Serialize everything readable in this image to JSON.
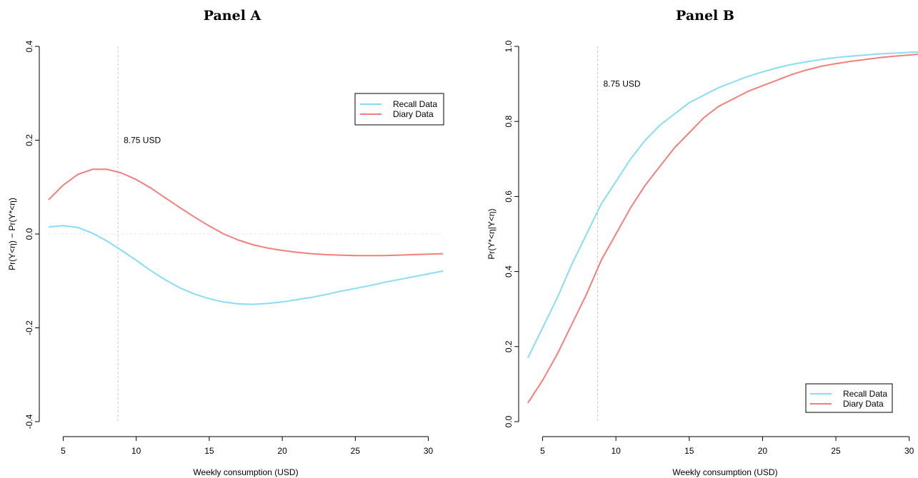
{
  "colors": {
    "recall": "#87DDF5",
    "diary": "#F47F7A",
    "refline": "#C8C8C8"
  },
  "chart_data": [
    {
      "type": "line",
      "title": "Panel A",
      "xlabel": "Weekly consumption (USD)",
      "ylabel": "Pr(Y<η) − Pr(Y*<η)",
      "xlim": [
        4,
        31
      ],
      "ylim": [
        -0.4,
        0.4
      ],
      "xticks": [
        5,
        10,
        15,
        20,
        25,
        30
      ],
      "yticks": [
        -0.4,
        -0.2,
        0.0,
        0.2,
        0.4
      ],
      "ytick_labels": [
        "-0.4",
        "-0.2",
        "0.0",
        "0.2",
        "0.4"
      ],
      "annotation": {
        "text": "8.75 USD",
        "x": 8.75,
        "y": 0.2
      },
      "vline_x": 8.75,
      "hline_y": 0.0,
      "legend_position": "top-right",
      "series": [
        {
          "name": "Recall Data",
          "color_key": "recall",
          "x": [
            4,
            5,
            6,
            7,
            8,
            9,
            10,
            11,
            12,
            13,
            14,
            15,
            16,
            17,
            18,
            19,
            20,
            21,
            22,
            23,
            24,
            25,
            26,
            27,
            28,
            29,
            30,
            31
          ],
          "y": [
            0.015,
            0.018,
            0.014,
            0.002,
            -0.015,
            -0.035,
            -0.056,
            -0.078,
            -0.098,
            -0.115,
            -0.128,
            -0.138,
            -0.145,
            -0.149,
            -0.15,
            -0.148,
            -0.145,
            -0.14,
            -0.135,
            -0.129,
            -0.122,
            -0.116,
            -0.11,
            -0.103,
            -0.097,
            -0.091,
            -0.085,
            -0.079
          ]
        },
        {
          "name": "Diary Data",
          "color_key": "diary",
          "x": [
            4,
            5,
            6,
            7,
            8,
            9,
            10,
            11,
            12,
            13,
            14,
            15,
            16,
            17,
            18,
            19,
            20,
            21,
            22,
            23,
            24,
            25,
            26,
            27,
            28,
            29,
            30,
            31
          ],
          "y": [
            0.073,
            0.104,
            0.127,
            0.138,
            0.138,
            0.13,
            0.116,
            0.098,
            0.077,
            0.056,
            0.036,
            0.017,
            0.0,
            -0.013,
            -0.023,
            -0.03,
            -0.035,
            -0.039,
            -0.042,
            -0.044,
            -0.045,
            -0.046,
            -0.046,
            -0.046,
            -0.045,
            -0.044,
            -0.043,
            -0.042
          ]
        }
      ]
    },
    {
      "type": "line",
      "title": "Panel B",
      "xlabel": "Weekly consumption (USD)",
      "ylabel": "Pr(Y*<η|Y<η)",
      "xlim": [
        4,
        30.6
      ],
      "ylim": [
        0.0,
        1.0
      ],
      "xticks": [
        5,
        10,
        15,
        20,
        25,
        30
      ],
      "yticks": [
        0.0,
        0.2,
        0.4,
        0.6,
        0.8,
        1.0
      ],
      "ytick_labels": [
        "0.0",
        "0.2",
        "0.4",
        "0.6",
        "0.8",
        "1.0"
      ],
      "annotation": {
        "text": "8.75 USD",
        "x": 8.75,
        "y": 0.9
      },
      "vline_x": 8.75,
      "legend_position": "bottom-right",
      "series": [
        {
          "name": "Recall Data",
          "color_key": "recall",
          "x": [
            4,
            5,
            6,
            7,
            8,
            9,
            10,
            11,
            12,
            13,
            14,
            15,
            16,
            17,
            18,
            19,
            20,
            21,
            22,
            23,
            24,
            25,
            26,
            27,
            28,
            29,
            30,
            30.6
          ],
          "y": [
            0.17,
            0.25,
            0.33,
            0.42,
            0.5,
            0.58,
            0.64,
            0.7,
            0.75,
            0.79,
            0.82,
            0.85,
            0.87,
            0.89,
            0.905,
            0.92,
            0.932,
            0.943,
            0.952,
            0.959,
            0.965,
            0.97,
            0.974,
            0.977,
            0.98,
            0.982,
            0.984,
            0.985
          ]
        },
        {
          "name": "Diary Data",
          "color_key": "diary",
          "x": [
            4,
            5,
            6,
            7,
            8,
            9,
            10,
            11,
            12,
            13,
            14,
            15,
            16,
            17,
            18,
            19,
            20,
            21,
            22,
            23,
            24,
            25,
            26,
            27,
            28,
            29,
            30,
            30.6
          ],
          "y": [
            0.05,
            0.11,
            0.18,
            0.26,
            0.34,
            0.43,
            0.5,
            0.57,
            0.63,
            0.68,
            0.73,
            0.77,
            0.81,
            0.84,
            0.86,
            0.88,
            0.895,
            0.91,
            0.925,
            0.937,
            0.947,
            0.954,
            0.96,
            0.965,
            0.97,
            0.974,
            0.977,
            0.979
          ]
        }
      ]
    }
  ]
}
